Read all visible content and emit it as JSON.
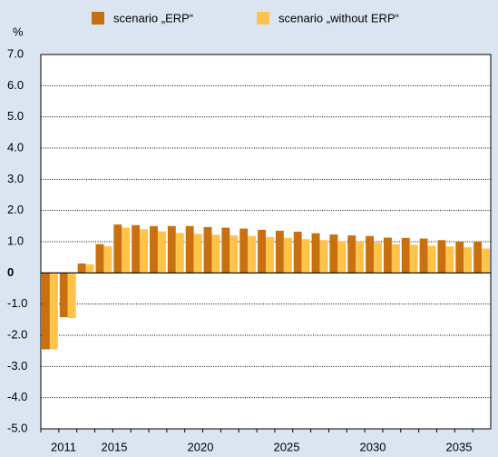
{
  "chart_data": {
    "type": "bar",
    "y_label": "%",
    "categories": [
      "2011",
      null,
      null,
      null,
      "2015",
      null,
      null,
      null,
      null,
      "2020",
      null,
      null,
      null,
      null,
      "2025",
      null,
      null,
      null,
      null,
      "2030",
      null,
      null,
      null,
      null,
      "2035"
    ],
    "series": [
      {
        "name": "scenario „ERP“",
        "color": "#c8700f",
        "values": [
          -2.45,
          -1.42,
          0.3,
          0.92,
          1.55,
          1.53,
          1.5,
          1.5,
          1.5,
          1.47,
          1.45,
          1.42,
          1.38,
          1.35,
          1.32,
          1.27,
          1.23,
          1.2,
          1.18,
          1.13,
          1.12,
          1.1,
          1.05,
          1.0,
          1.0
        ]
      },
      {
        "name": "scenario „without ERP“",
        "color": "#ffc34a",
        "values": [
          -2.45,
          -1.45,
          0.27,
          0.85,
          1.45,
          1.4,
          1.33,
          1.28,
          1.25,
          1.22,
          1.2,
          1.18,
          1.15,
          1.12,
          1.08,
          1.05,
          1.02,
          1.0,
          0.97,
          0.92,
          0.9,
          0.87,
          0.85,
          0.82,
          0.78
        ]
      }
    ],
    "ylim": [
      -5,
      7
    ],
    "yticks": [
      {
        "value": -5,
        "label": "-5.0"
      },
      {
        "value": -4,
        "label": "-4.0"
      },
      {
        "value": -3,
        "label": "-3.0"
      },
      {
        "value": -2,
        "label": "-2.0"
      },
      {
        "value": -1,
        "label": "-1.0"
      },
      0,
      {
        "value": 1,
        "label": "1.0"
      },
      {
        "value": 2,
        "label": "2.0"
      },
      {
        "value": 3,
        "label": "3.0"
      },
      {
        "value": 4,
        "label": "4.0"
      },
      {
        "value": 5,
        "label": "5.0"
      },
      {
        "value": 6,
        "label": "6.0"
      },
      {
        "value": 7,
        "label": "7.0"
      }
    ],
    "grid": true
  }
}
